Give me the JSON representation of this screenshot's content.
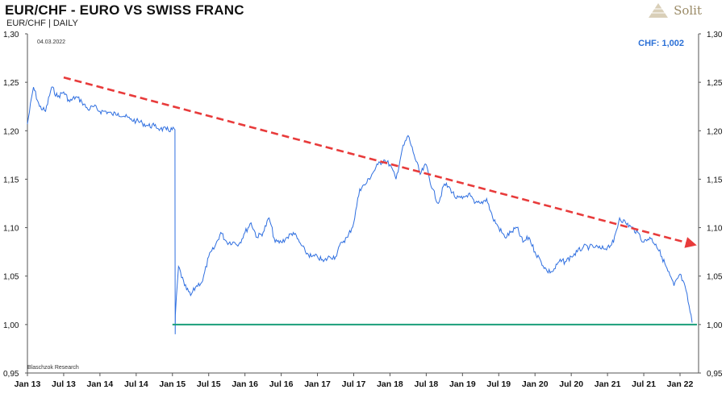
{
  "header": {
    "title": "EUR/CHF - EURO VS SWISS FRANC",
    "subtitle": "EUR/CHF | DAILY",
    "logo_text": "Solit",
    "logo_icon": "pyramid-icon"
  },
  "chart_data": {
    "type": "line",
    "date_label": "04.03.2022",
    "source": "Blaschzok Research",
    "readout": "CHF: 1,002",
    "ylim": [
      0.95,
      1.3
    ],
    "yticks": [
      "0,95",
      "1,00",
      "1,05",
      "1,10",
      "1,15",
      "1,20",
      "1,25",
      "1,30"
    ],
    "x_labels": [
      "Jan 13",
      "Jul 13",
      "Jan 14",
      "Jul 14",
      "Jan 15",
      "Jul 15",
      "Jan 16",
      "Jul 16",
      "Jan 17",
      "Jul 17",
      "Jan 18",
      "Jul 18",
      "Jan 19",
      "Jul 19",
      "Jan 20",
      "Jul 20",
      "Jan 21",
      "Jul 21",
      "Jan 22"
    ],
    "series": [
      {
        "kind": "price",
        "color": "#2f6fe0",
        "x": [
          "Jan 13",
          "Feb 13",
          "Mar 13",
          "Apr 13",
          "May 13",
          "Jun 13",
          "Jul 13",
          "Aug 13",
          "Sep 13",
          "Oct 13",
          "Nov 13",
          "Dec 13",
          "Jan 14",
          "Feb 14",
          "Mar 14",
          "Apr 14",
          "May 14",
          "Jun 14",
          "Jul 14",
          "Aug 14",
          "Sep 14",
          "Oct 14",
          "Nov 14",
          "Dec 14",
          "Jan 14 2015",
          "Jan 15 2015",
          "Jan 16 2015",
          "Feb 15",
          "Mar 15",
          "Apr 15",
          "May 15",
          "Jun 15",
          "Jul 15",
          "Aug 15",
          "Sep 15",
          "Oct 15",
          "Nov 15",
          "Dec 15",
          "Jan 16",
          "Feb 16",
          "Mar 16",
          "Apr 16",
          "May 16",
          "Jun 16",
          "Jul 16",
          "Aug 16",
          "Sep 16",
          "Oct 16",
          "Nov 16",
          "Dec 16",
          "Jan 17",
          "Feb 17",
          "Mar 17",
          "Apr 17",
          "May 17",
          "Jun 17",
          "Jul 17",
          "Aug 17",
          "Sep 17",
          "Oct 17",
          "Nov 17",
          "Dec 17",
          "Jan 18",
          "Feb 18",
          "Mar 18",
          "Apr 18",
          "May 18",
          "Jun 18",
          "Jul 18",
          "Aug 18",
          "Sep 18",
          "Oct 18",
          "Nov 18",
          "Dec 18",
          "Jan 19",
          "Feb 19",
          "Mar 19",
          "Apr 19",
          "May 19",
          "Jun 19",
          "Jul 19",
          "Aug 19",
          "Sep 19",
          "Oct 19",
          "Nov 19",
          "Dec 19",
          "Jan 20",
          "Feb 20",
          "Mar 20",
          "Apr 20",
          "May 20",
          "Jun 20",
          "Jul 20",
          "Aug 20",
          "Sep 20",
          "Oct 20",
          "Nov 20",
          "Dec 20",
          "Jan 21",
          "Feb 21",
          "Mar 21",
          "Apr 21",
          "May 21",
          "Jun 21",
          "Jul 21",
          "Aug 21",
          "Sep 21",
          "Oct 21",
          "Nov 21",
          "Dec 21",
          "Jan 22",
          "Feb 22",
          "Mar 22"
        ],
        "y": [
          1.207,
          1.245,
          1.225,
          1.22,
          1.245,
          1.235,
          1.24,
          1.23,
          1.235,
          1.23,
          1.222,
          1.225,
          1.22,
          1.22,
          1.217,
          1.218,
          1.215,
          1.212,
          1.21,
          1.208,
          1.205,
          1.205,
          1.202,
          1.201,
          1.201,
          0.99,
          1.01,
          1.06,
          1.04,
          1.03,
          1.04,
          1.045,
          1.07,
          1.08,
          1.095,
          1.085,
          1.085,
          1.083,
          1.095,
          1.105,
          1.09,
          1.095,
          1.11,
          1.085,
          1.085,
          1.09,
          1.095,
          1.085,
          1.075,
          1.07,
          1.07,
          1.065,
          1.07,
          1.07,
          1.085,
          1.09,
          1.105,
          1.14,
          1.145,
          1.155,
          1.165,
          1.17,
          1.165,
          1.15,
          1.18,
          1.195,
          1.175,
          1.155,
          1.165,
          1.14,
          1.125,
          1.145,
          1.14,
          1.13,
          1.13,
          1.135,
          1.125,
          1.125,
          1.13,
          1.11,
          1.1,
          1.09,
          1.095,
          1.1,
          1.085,
          1.09,
          1.075,
          1.065,
          1.055,
          1.055,
          1.065,
          1.065,
          1.07,
          1.075,
          1.08,
          1.08,
          1.08,
          1.078,
          1.08,
          1.085,
          1.11,
          1.105,
          1.1,
          1.095,
          1.085,
          1.09,
          1.083,
          1.07,
          1.055,
          1.04,
          1.052,
          1.035,
          1.002
        ]
      },
      {
        "kind": "trend",
        "color": "#e83b3b",
        "x": [
          "Jul 13",
          "Mar 22"
        ],
        "y": [
          1.255,
          1.083
        ]
      },
      {
        "kind": "support",
        "color": "#1a9e7a",
        "x": [
          "Jan 15",
          "Mar 22"
        ],
        "y": [
          1.0,
          1.0
        ]
      }
    ]
  }
}
